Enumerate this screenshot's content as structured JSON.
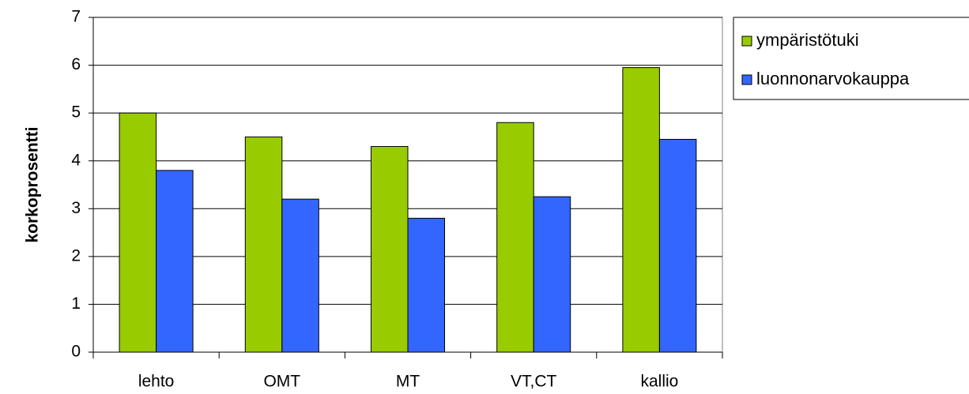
{
  "chart_data": {
    "type": "bar",
    "y_label": "korkoprosentti",
    "categories": [
      "lehto",
      "OMT",
      "MT",
      "VT,CT",
      "kallio"
    ],
    "series": [
      {
        "name": "ympäristötuki",
        "color": "#99cc00",
        "values": [
          5.0,
          4.5,
          4.3,
          4.8,
          5.95
        ]
      },
      {
        "name": "luonnonarvokauppa",
        "color": "#3366ff",
        "values": [
          3.8,
          3.2,
          2.8,
          3.25,
          4.45
        ]
      }
    ],
    "ylim": [
      0,
      7
    ],
    "yticks": [
      0,
      1,
      2,
      3,
      4,
      5,
      6,
      7
    ],
    "grid": true,
    "legend": "right"
  }
}
